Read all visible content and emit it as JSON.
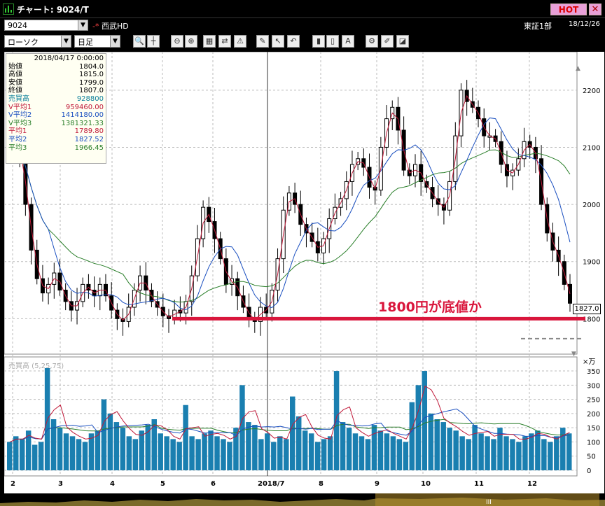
{
  "window": {
    "title": "チャート: 9024/T",
    "hot_label": "HOT",
    "close_glyph": "✕"
  },
  "symbol": {
    "code": "9024",
    "pin": "-*",
    "name": "西武HD",
    "market": "東証1部",
    "date": "18/12/26"
  },
  "toolbar": {
    "chart_type": "ローソク",
    "period": "日足",
    "icons": [
      "search-icon",
      "crosshair-icon",
      "zoom-out-icon",
      "zoom-in-icon",
      "grid-icon",
      "compare-icon",
      "warning-icon",
      "pencil-icon",
      "cursor-icon",
      "undo-icon",
      "bar-icon",
      "bar2-icon",
      "all-icon",
      "settings-icon",
      "brush-icon",
      "palette-icon"
    ]
  },
  "info_panel": {
    "timestamp": "2018/04/17 0:00:00",
    "rows": [
      {
        "label": "始値",
        "value": "1804.0",
        "color": "#000000"
      },
      {
        "label": "高値",
        "value": "1815.0",
        "color": "#000000"
      },
      {
        "label": "安値",
        "value": "1799.0",
        "color": "#000000"
      },
      {
        "label": "終値",
        "value": "1807.0",
        "color": "#000000"
      },
      {
        "label": "売買高",
        "value": "928800",
        "color": "#0a7f9a"
      },
      {
        "label": "V平均1",
        "value": "959460.00",
        "color": "#c01a3a"
      },
      {
        "label": "V平均2",
        "value": "1414180.00",
        "color": "#1a4fc0"
      },
      {
        "label": "V平均3",
        "value": "1381321.33",
        "color": "#2a7f2a"
      },
      {
        "label": "平均1",
        "value": "1789.80",
        "color": "#c01a3a"
      },
      {
        "label": "平均2",
        "value": "1827.52",
        "color": "#1a4fc0"
      },
      {
        "label": "平均3",
        "value": "1966.45",
        "color": "#2a7f2a"
      }
    ]
  },
  "annotation": "1800円が底値か",
  "current_price": "1827.0",
  "volume_title": "売買高 (5,25,75)",
  "volume_unit": "×万",
  "chart_data": {
    "type": "candlestick",
    "price_axis": {
      "ticks": [
        1800,
        1900,
        2000,
        2100,
        2200
      ],
      "ylim": [
        1760,
        2250
      ]
    },
    "volume_axis": {
      "ticks": [
        0,
        50,
        100,
        150,
        200,
        250,
        300,
        350
      ],
      "ylim": [
        0,
        360
      ]
    },
    "x_labels": [
      "2",
      "3",
      "4",
      "5",
      "6",
      "2018/7",
      "8",
      "9",
      "10",
      "11",
      "12"
    ],
    "support_level": 1800,
    "ma_colors": {
      "ma1": "#c01a3a",
      "ma2": "#1a4fc0",
      "ma3": "#2a7f2a"
    },
    "close_path": [
      [
        0,
        2120
      ],
      [
        4,
        2080
      ],
      [
        8,
        2000
      ],
      [
        12,
        1920
      ],
      [
        16,
        1870
      ],
      [
        20,
        1845
      ],
      [
        24,
        1860
      ],
      [
        28,
        1880
      ],
      [
        32,
        1850
      ],
      [
        36,
        1830
      ],
      [
        40,
        1815
      ],
      [
        44,
        1830
      ],
      [
        48,
        1860
      ],
      [
        52,
        1850
      ],
      [
        56,
        1840
      ],
      [
        60,
        1860
      ],
      [
        64,
        1840
      ],
      [
        68,
        1815
      ],
      [
        72,
        1800
      ],
      [
        76,
        1795
      ],
      [
        80,
        1820
      ],
      [
        84,
        1850
      ],
      [
        88,
        1875
      ],
      [
        92,
        1850
      ],
      [
        96,
        1830
      ],
      [
        100,
        1820
      ],
      [
        104,
        1805
      ],
      [
        108,
        1800
      ],
      [
        112,
        1815
      ],
      [
        116,
        1810
      ],
      [
        120,
        1830
      ],
      [
        124,
        1875
      ],
      [
        128,
        1940
      ],
      [
        132,
        1995
      ],
      [
        136,
        1970
      ],
      [
        140,
        1940
      ],
      [
        144,
        1905
      ],
      [
        148,
        1860
      ],
      [
        152,
        1870
      ],
      [
        156,
        1840
      ],
      [
        160,
        1820
      ],
      [
        164,
        1800
      ],
      [
        168,
        1795
      ],
      [
        172,
        1820
      ],
      [
        176,
        1810
      ],
      [
        180,
        1850
      ],
      [
        184,
        1905
      ],
      [
        188,
        1990
      ],
      [
        192,
        2020
      ],
      [
        196,
        2000
      ],
      [
        200,
        1965
      ],
      [
        204,
        1950
      ],
      [
        208,
        1935
      ],
      [
        212,
        1915
      ],
      [
        216,
        1940
      ],
      [
        220,
        1975
      ],
      [
        224,
        1995
      ],
      [
        228,
        2010
      ],
      [
        232,
        2040
      ],
      [
        236,
        2070
      ],
      [
        240,
        2080
      ],
      [
        244,
        2065
      ],
      [
        248,
        2030
      ],
      [
        252,
        2025
      ],
      [
        256,
        2100
      ],
      [
        260,
        2150
      ],
      [
        264,
        2170
      ],
      [
        268,
        2130
      ],
      [
        272,
        2060
      ],
      [
        276,
        2050
      ],
      [
        280,
        2070
      ],
      [
        284,
        2040
      ],
      [
        288,
        2030
      ],
      [
        292,
        2010
      ],
      [
        296,
        2000
      ],
      [
        300,
        1990
      ],
      [
        304,
        2040
      ],
      [
        308,
        2120
      ],
      [
        312,
        2200
      ],
      [
        316,
        2180
      ],
      [
        320,
        2170
      ],
      [
        324,
        2150
      ],
      [
        328,
        2120
      ],
      [
        332,
        2120
      ],
      [
        336,
        2110
      ],
      [
        340,
        2070
      ],
      [
        344,
        2050
      ],
      [
        348,
        2060
      ],
      [
        352,
        2080
      ],
      [
        356,
        2110
      ],
      [
        360,
        2100
      ],
      [
        364,
        2080
      ],
      [
        368,
        2000
      ],
      [
        372,
        1950
      ],
      [
        376,
        1920
      ],
      [
        380,
        1900
      ],
      [
        384,
        1860
      ],
      [
        388,
        1827
      ]
    ],
    "volume_values": [
      100,
      120,
      110,
      140,
      90,
      100,
      360,
      180,
      150,
      130,
      120,
      110,
      100,
      130,
      140,
      250,
      200,
      170,
      150,
      120,
      110,
      140,
      160,
      180,
      130,
      120,
      110,
      100,
      230,
      120,
      110,
      130,
      140,
      120,
      110,
      100,
      150,
      300,
      170,
      160,
      110,
      130,
      100,
      120,
      110,
      260,
      190,
      140,
      130,
      100,
      110,
      120,
      350,
      170,
      150,
      130,
      120,
      110,
      160,
      140,
      130,
      120,
      110,
      100,
      240,
      300,
      350,
      200,
      180,
      170,
      150,
      140,
      120,
      110,
      160,
      130,
      120,
      110,
      150,
      120,
      110,
      100,
      120,
      130,
      140,
      110,
      100,
      120,
      150,
      130
    ]
  }
}
